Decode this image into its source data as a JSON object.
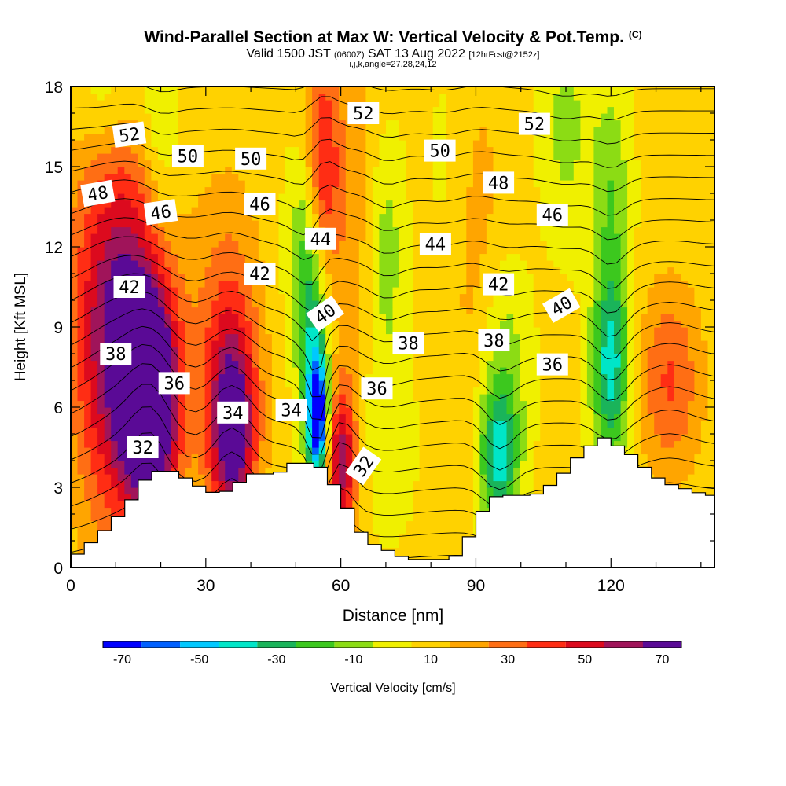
{
  "title": {
    "main": "Wind-Parallel Section at Max W: Vertical Velocity & Pot.Temp.",
    "main_tag": "(C)",
    "valid_prefix": "Valid 1500 JST",
    "valid_utc": "(0600Z)",
    "valid_date": "SAT 13 Aug 2022",
    "forecast": "[12hrFcst@2152z]",
    "indices": "i,j,k,angle=27,28,24,12"
  },
  "colors": {
    "frame": "#000000",
    "terrain": "#ffffff",
    "palette": [
      "#0000ff",
      "#0060ff",
      "#00c8ff",
      "#00e6c8",
      "#1ab45a",
      "#3cc81e",
      "#8cdc14",
      "#f0f000",
      "#ffd200",
      "#ffa500",
      "#ff6e14",
      "#ff2d14",
      "#dc0a1e",
      "#a0145a",
      "#5a0a96"
    ]
  },
  "chart_data": {
    "type": "heatmap",
    "xlabel": "Distance [nm]",
    "ylabel": "Height [Kft MSL]",
    "xlim": [
      0,
      143
    ],
    "ylim": [
      0,
      18
    ],
    "x_ticks": [
      "0",
      "30",
      "60",
      "90",
      "120"
    ],
    "y_ticks": [
      "0",
      "3",
      "6",
      "9",
      "12",
      "15",
      "18"
    ],
    "colorbar": {
      "label": "Vertical Velocity [cm/s]",
      "boundaries": [
        -75,
        -65,
        -55,
        -45,
        -35,
        -25,
        -15,
        -5,
        5,
        15,
        25,
        35,
        45,
        55,
        65,
        75
      ],
      "tick_labels": [
        "-70",
        "-50",
        "-30",
        "-10",
        "10",
        "30",
        "50",
        "70"
      ]
    },
    "terrain": [
      [
        0,
        0.3
      ],
      [
        3,
        0.7
      ],
      [
        7,
        1.3
      ],
      [
        10,
        1.8
      ],
      [
        13,
        2.4
      ],
      [
        16,
        3.2
      ],
      [
        19,
        3.6
      ],
      [
        23,
        3.6
      ],
      [
        26,
        3.3
      ],
      [
        29,
        3.0
      ],
      [
        33,
        2.7
      ],
      [
        36,
        3.0
      ],
      [
        40,
        3.5
      ],
      [
        46,
        3.5
      ],
      [
        49,
        3.9
      ],
      [
        55,
        3.9
      ],
      [
        57,
        3.3
      ],
      [
        60,
        2.9
      ],
      [
        62,
        2.0
      ],
      [
        64,
        1.4
      ],
      [
        67,
        0.9
      ],
      [
        75,
        0.3
      ],
      [
        85,
        0.3
      ],
      [
        88,
        1.0
      ],
      [
        90,
        1.6
      ],
      [
        93,
        2.6
      ],
      [
        96,
        2.7
      ],
      [
        103,
        2.7
      ],
      [
        106,
        3.0
      ],
      [
        110,
        3.6
      ],
      [
        113,
        4.2
      ],
      [
        118,
        4.9
      ],
      [
        121,
        4.6
      ],
      [
        124,
        4.3
      ],
      [
        126,
        4.0
      ],
      [
        129,
        3.5
      ],
      [
        132,
        3.2
      ],
      [
        135,
        3.0
      ],
      [
        138,
        2.9
      ],
      [
        141,
        2.7
      ],
      [
        143,
        2.7
      ]
    ],
    "updrafts": [
      {
        "x": 18,
        "z": 6.2,
        "w": 80,
        "sx": 4,
        "sz": 2.6
      },
      {
        "x": 12,
        "z": 7.2,
        "w": 46,
        "sx": 7,
        "sz": 4.5
      },
      {
        "x": 10,
        "z": 11.0,
        "w": 28,
        "sx": 8,
        "sz": 4.5
      },
      {
        "x": 36,
        "z": 5.0,
        "w": 55,
        "sx": 3.5,
        "sz": 2.5
      },
      {
        "x": 35,
        "z": 8.0,
        "w": 30,
        "sx": 5,
        "sz": 4
      },
      {
        "x": 60,
        "z": 4.0,
        "w": 52,
        "sx": 2.6,
        "sz": 2.0
      },
      {
        "x": 56,
        "z": 15.0,
        "w": 35,
        "sx": 2.5,
        "sz": 3
      },
      {
        "x": 62,
        "z": 12.0,
        "w": 14,
        "sx": 5,
        "sz": 7
      },
      {
        "x": 88,
        "z": 12.0,
        "w": 16,
        "sx": 6,
        "sz": 5
      },
      {
        "x": 133,
        "z": 7.0,
        "w": 28,
        "sx": 5,
        "sz": 2.5
      }
    ],
    "downdrafts": [
      {
        "x": 55,
        "z": 5.5,
        "w": -78,
        "sx": 1.6,
        "sz": 1.6
      },
      {
        "x": 54,
        "z": 8.0,
        "w": -40,
        "sx": 2.5,
        "sz": 2.8
      },
      {
        "x": 52,
        "z": 12.0,
        "w": -22,
        "sx": 3,
        "sz": 2.5
      },
      {
        "x": 95,
        "z": 4.0,
        "w": -42,
        "sx": 3,
        "sz": 1.8
      },
      {
        "x": 96,
        "z": 7.5,
        "w": -22,
        "sx": 4,
        "sz": 3
      },
      {
        "x": 120,
        "z": 7.5,
        "w": -48,
        "sx": 3,
        "sz": 2.5
      },
      {
        "x": 20,
        "z": 16.5,
        "w": -18,
        "sx": 3,
        "sz": 3
      },
      {
        "x": 70,
        "z": 12.0,
        "w": -20,
        "sx": 3,
        "sz": 3
      },
      {
        "x": 84,
        "z": 14.0,
        "w": -14,
        "sx": 4,
        "sz": 4
      },
      {
        "x": 110,
        "z": 16.5,
        "w": -16,
        "sx": 4,
        "sz": 3
      },
      {
        "x": 120,
        "z": 14.0,
        "w": -22,
        "sx": 3,
        "sz": 3
      },
      {
        "x": 8,
        "z": 17.5,
        "w": -15,
        "sx": 5,
        "sz": 1.5
      },
      {
        "x": 68,
        "z": 5.0,
        "w": -12,
        "sx": 6,
        "sz": 3
      }
    ],
    "theta_levels": [
      31,
      32,
      33,
      34,
      35,
      36,
      37,
      38,
      39,
      40,
      41,
      42,
      43,
      44,
      45,
      46,
      47,
      48,
      49,
      50,
      51,
      52,
      53
    ],
    "contour_labels": [
      {
        "text": "52",
        "x": 13,
        "z": 16.2,
        "angle": -8
      },
      {
        "text": "50",
        "x": 26,
        "z": 15.4,
        "angle": 0
      },
      {
        "text": "48",
        "x": 6,
        "z": 14.0,
        "angle": -10
      },
      {
        "text": "46",
        "x": 20,
        "z": 13.3,
        "angle": -8
      },
      {
        "text": "42",
        "x": 13,
        "z": 10.5,
        "angle": 0
      },
      {
        "text": "38",
        "x": 10,
        "z": 8.0,
        "angle": 0
      },
      {
        "text": "36",
        "x": 23,
        "z": 6.9,
        "angle": 0
      },
      {
        "text": "32",
        "x": 16,
        "z": 4.5,
        "angle": 0
      },
      {
        "text": "50",
        "x": 40,
        "z": 15.3,
        "angle": 0
      },
      {
        "text": "46",
        "x": 42,
        "z": 13.6,
        "angle": 0
      },
      {
        "text": "42",
        "x": 42,
        "z": 11.0,
        "angle": 0
      },
      {
        "text": "34",
        "x": 36,
        "z": 5.8,
        "angle": 0
      },
      {
        "text": "34",
        "x": 49,
        "z": 5.9,
        "angle": 0
      },
      {
        "text": "44",
        "x": 55.5,
        "z": 12.3,
        "angle": 0
      },
      {
        "text": "40",
        "x": 56.5,
        "z": 9.5,
        "angle": -35
      },
      {
        "text": "52",
        "x": 65,
        "z": 17.0,
        "angle": 0
      },
      {
        "text": "36",
        "x": 68,
        "z": 6.7,
        "angle": 0
      },
      {
        "text": "32",
        "x": 65,
        "z": 3.8,
        "angle": -55
      },
      {
        "text": "50",
        "x": 82,
        "z": 15.6,
        "angle": 0
      },
      {
        "text": "44",
        "x": 81,
        "z": 12.1,
        "angle": 0
      },
      {
        "text": "38",
        "x": 75,
        "z": 8.4,
        "angle": 0
      },
      {
        "text": "52",
        "x": 103,
        "z": 16.6,
        "angle": 0
      },
      {
        "text": "48",
        "x": 95,
        "z": 14.4,
        "angle": 0
      },
      {
        "text": "46",
        "x": 107,
        "z": 13.2,
        "angle": 0
      },
      {
        "text": "42",
        "x": 95,
        "z": 10.6,
        "angle": 0
      },
      {
        "text": "40",
        "x": 109,
        "z": 9.8,
        "angle": -30
      },
      {
        "text": "38",
        "x": 94,
        "z": 8.5,
        "angle": 0
      },
      {
        "text": "36",
        "x": 107,
        "z": 7.6,
        "angle": 0
      }
    ]
  }
}
